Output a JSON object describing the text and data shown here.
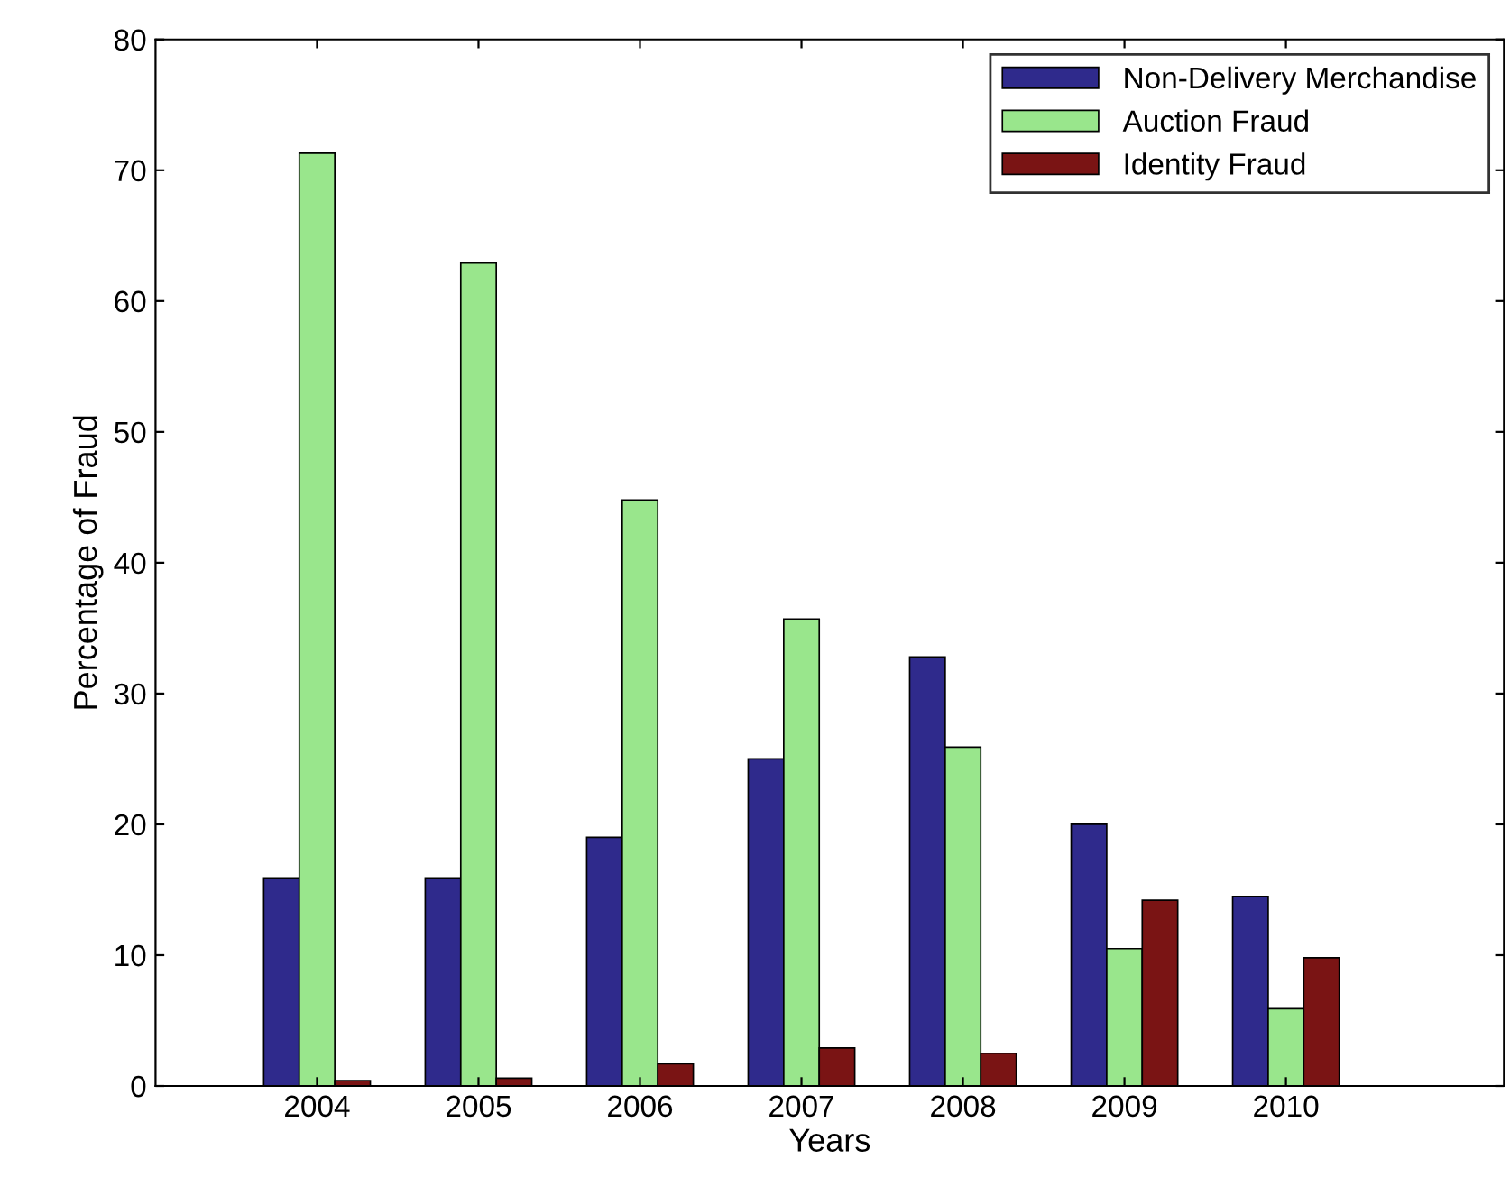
{
  "chart_data": {
    "type": "bar",
    "xlabel": "Years",
    "ylabel": "Percentage of Fraud",
    "categories": [
      "2004",
      "2005",
      "2006",
      "2007",
      "2008",
      "2009",
      "2010"
    ],
    "series": [
      {
        "name": "Non-Delivery Merchandise",
        "color": "#2f2a8c",
        "values": [
          15.9,
          15.9,
          19.0,
          25.0,
          32.8,
          20.0,
          14.5
        ]
      },
      {
        "name": "Auction Fraud",
        "color": "#99e68c",
        "values": [
          71.3,
          62.9,
          44.8,
          35.7,
          25.9,
          10.5,
          5.9
        ]
      },
      {
        "name": "Identity Fraud",
        "color": "#7a1414",
        "values": [
          0.4,
          0.6,
          1.7,
          2.9,
          2.5,
          14.2,
          9.8
        ]
      }
    ],
    "ylim": [
      0,
      80
    ],
    "yticks": [
      0,
      10,
      20,
      30,
      40,
      50,
      60,
      70,
      80
    ],
    "grid": false,
    "legend": "top right"
  }
}
